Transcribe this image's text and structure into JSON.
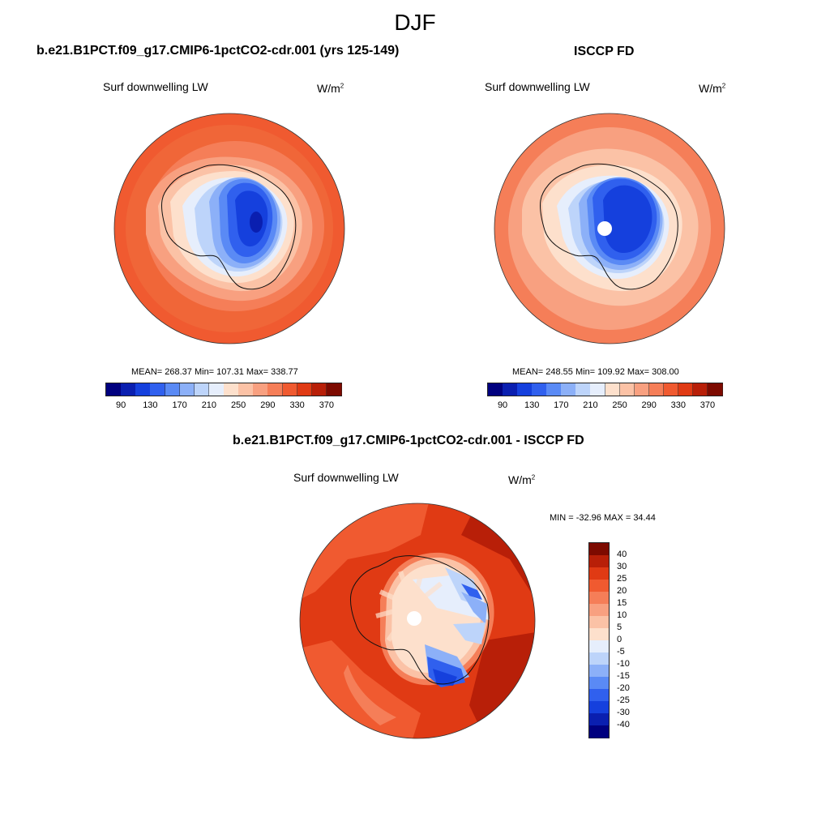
{
  "figure": {
    "season": "DJF"
  },
  "panels": [
    {
      "id": "model",
      "title": "b.e21.B1PCT.f09_g17.CMIP6-1pctCO2-cdr.001 (yrs 125-149)",
      "variable": "Surf downwelling LW",
      "units_base": "W/m",
      "units_exp": "2",
      "stats": "MEAN= 268.37  Min= 107.31  Max= 338.77"
    },
    {
      "id": "obs",
      "title": "ISCCP FD",
      "variable": "Surf downwelling LW",
      "units_base": "W/m",
      "units_exp": "2",
      "stats": "MEAN= 248.55  Min= 109.92  Max= 308.00"
    },
    {
      "id": "diff",
      "title": "b.e21.B1PCT.f09_g17.CMIP6-1pctCO2-cdr.001 - ISCCP FD",
      "variable": "Surf downwelling LW",
      "units_base": "W/m",
      "units_exp": "2",
      "stats": "MIN = -32.96 MAX =  34.44"
    }
  ],
  "colorbars": {
    "absolute": {
      "colors": [
        "#00007f",
        "#0a1fb0",
        "#1540dd",
        "#3060ee",
        "#5a8af5",
        "#8cb0f8",
        "#bdd4fa",
        "#e6eefc",
        "#fde0cc",
        "#fbc2a6",
        "#f8a080",
        "#f57e58",
        "#f05a30",
        "#e03a14",
        "#b81f08",
        "#7d0a00"
      ],
      "tick_labels": [
        "90",
        "130",
        "170",
        "210",
        "250",
        "290",
        "330",
        "370"
      ]
    },
    "difference": {
      "colors": [
        "#7d0a00",
        "#b81f08",
        "#e03a14",
        "#f05a30",
        "#f57e58",
        "#f8a080",
        "#fbc2a6",
        "#fde0cc",
        "#e6eefc",
        "#bdd4fa",
        "#8cb0f8",
        "#5a8af5",
        "#3060ee",
        "#1540dd",
        "#0a1fb0",
        "#00007f"
      ],
      "tick_labels": [
        "40",
        "30",
        "25",
        "20",
        "15",
        "10",
        "5",
        "0",
        "-5",
        "-10",
        "-15",
        "-20",
        "-25",
        "-30",
        "-40"
      ]
    }
  }
}
